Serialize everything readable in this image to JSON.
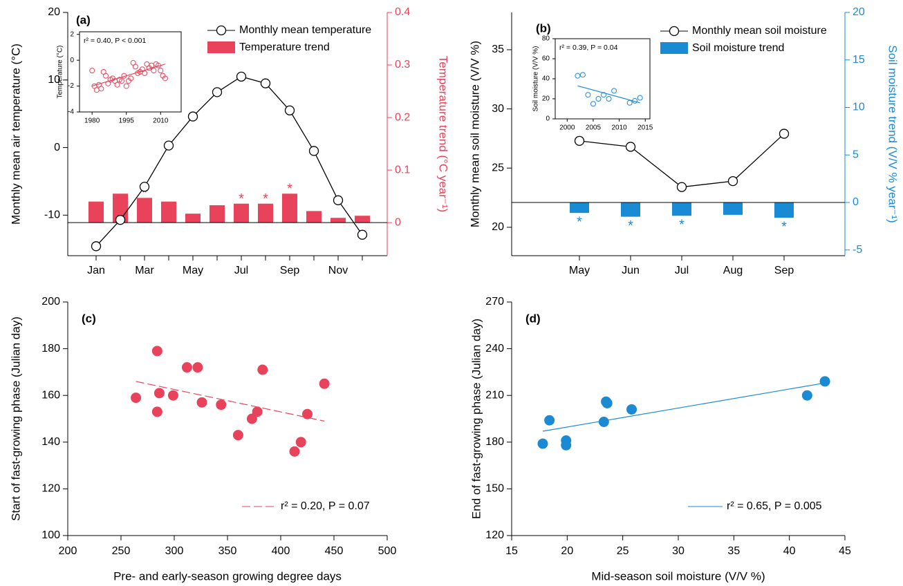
{
  "chart_data": [
    {
      "type": "combo",
      "label": "(a)",
      "categories": [
        "Jan",
        null,
        "Mar",
        null,
        "May",
        null,
        "Jul",
        null,
        "Sep",
        null,
        "Nov",
        null
      ],
      "ylabel": "Monthly mean air temperature (°C)",
      "y2label": "Temperature trend (°C year⁻¹)",
      "ylim": [
        -16,
        20
      ],
      "yticks": [
        -10,
        0,
        10,
        20
      ],
      "y2lim": [
        -0.063,
        0.4
      ],
      "y2ticks": [
        0,
        0.1,
        0.2,
        0.3,
        0.4
      ],
      "significance_marker": "*",
      "significance_position": "above",
      "series": [
        {
          "name": "Monthly mean temperature",
          "type": "line",
          "color": "#000000",
          "values": [
            -14.6,
            -10.7,
            -5.8,
            0.3,
            4.6,
            8.2,
            10.5,
            9.5,
            5.5,
            -0.5,
            -7.8,
            -12.9
          ]
        },
        {
          "name": "Temperature trend",
          "type": "bar",
          "axis": "y2",
          "color": "#e8435a",
          "values": [
            0.04,
            0.055,
            0.047,
            0.04,
            0.017,
            0.033,
            0.036,
            0.036,
            0.055,
            0.022,
            0.009,
            0.013
          ],
          "significant": [
            false,
            false,
            true,
            false,
            false,
            false,
            true,
            true,
            true,
            false,
            false,
            false
          ]
        }
      ]
    },
    {
      "type": "scatter",
      "inset": true,
      "hollow": true,
      "color": "#e8435a",
      "ylabel": "Temperature (°C)",
      "xlim": [
        1974.5,
        2019
      ],
      "xticks": [
        1980,
        1995,
        2010
      ],
      "ylim": [
        -4,
        2.2
      ],
      "yticks": [
        -4,
        -2,
        0,
        2
      ],
      "x": [
        1980,
        1981,
        1982,
        1983,
        1984,
        1985,
        1986,
        1987,
        1988,
        1989,
        1990,
        1991,
        1992,
        1993,
        1994,
        1995,
        1996,
        1997,
        1998,
        1999,
        2000,
        2001,
        2002,
        2003,
        2004,
        2005,
        2006,
        2007,
        2008,
        2009,
        2010,
        2011,
        2012
      ],
      "values": [
        -0.8,
        -2.0,
        -2.3,
        -1.9,
        -2.2,
        -0.9,
        -1.2,
        -1.8,
        -1.5,
        -1.4,
        -1.6,
        -1.9,
        -1.5,
        -1.6,
        -1.2,
        -2.0,
        -1.6,
        -1.4,
        -0.2,
        -0.5,
        -1.0,
        -0.9,
        -0.7,
        -1.0,
        -0.3,
        -0.6,
        -0.4,
        -0.8,
        -0.3,
        -0.4,
        -0.8,
        -1.2,
        -1.4
      ],
      "fit": {
        "x": [
          1980,
          2012
        ],
        "y": [
          -2.0,
          -0.3
        ],
        "dashed": false,
        "label": "r² = 0.40, P < 0.001"
      }
    },
    {
      "type": "combo",
      "label": "(b)",
      "categories": [
        "May",
        "Jun",
        "Jul",
        "Aug",
        "Sep"
      ],
      "ylabel": "Monthly mean soil moisture (V/V %)",
      "y2label": "Soil moisture trend (V/V %  year⁻¹)",
      "ylim": [
        17.6,
        38.15
      ],
      "yticks": [
        20,
        25,
        30,
        35
      ],
      "y2lim": [
        -5.6,
        20
      ],
      "y2ticks": [
        -5,
        0,
        5,
        10,
        15,
        20
      ],
      "significance_marker": "*",
      "significance_position": "below",
      "series": [
        {
          "name": "Monthly mean soil moisture",
          "type": "line",
          "color": "#000000",
          "values": [
            27.3,
            26.8,
            23.4,
            23.9,
            27.9
          ]
        },
        {
          "name": "Soil moisture trend",
          "type": "bar",
          "axis": "y2",
          "color": "#1a8ad4",
          "values": [
            -1.1,
            -1.5,
            -1.4,
            -1.3,
            -1.6
          ],
          "significant": [
            true,
            true,
            true,
            false,
            true
          ]
        }
      ]
    },
    {
      "type": "scatter",
      "inset": true,
      "hollow": true,
      "color": "#1a8ad4",
      "ylabel": "Soil moisture (V/V %)",
      "xlim": [
        1997.7,
        2015.9
      ],
      "xticks": [
        2000,
        2005,
        2010,
        2015
      ],
      "ylim": [
        0,
        80
      ],
      "yticks": [
        0,
        20,
        40,
        60,
        80
      ],
      "x": [
        2002,
        2003,
        2004,
        2005,
        2006,
        2007,
        2008,
        2009,
        2012,
        2013,
        2014
      ],
      "values": [
        43,
        44,
        24,
        15,
        20,
        24,
        20,
        28,
        16,
        18,
        21
      ],
      "fit": {
        "x": [
          2002,
          2014
        ],
        "y": [
          33,
          16
        ],
        "dashed": false,
        "label": "r² = 0.39, P = 0.04"
      }
    },
    {
      "type": "scatter",
      "label": "(c)",
      "hollow": false,
      "color": "#e8435a",
      "xlabel": "Pre- and early-season growing degree days",
      "ylabel": "Start of fast-growing phase (Julian day)",
      "xlim": [
        200,
        500
      ],
      "xticks": [
        200,
        250,
        300,
        350,
        400,
        450,
        500
      ],
      "ylim": [
        100,
        200
      ],
      "yticks": [
        100,
        120,
        140,
        160,
        180,
        200
      ],
      "x": [
        264,
        284,
        284,
        286,
        299,
        312,
        322,
        326,
        344,
        360,
        373,
        378,
        383,
        413,
        419,
        425,
        441
      ],
      "values": [
        159,
        179,
        153,
        161,
        160,
        172,
        172,
        157,
        156,
        143,
        150,
        153,
        171,
        136,
        140,
        152,
        165
      ],
      "fit": {
        "x": [
          264,
          441
        ],
        "y": [
          166,
          149
        ],
        "dashed": true,
        "label": "r² = 0.20, P = 0.07"
      }
    },
    {
      "type": "scatter",
      "label": "(d)",
      "hollow": false,
      "color": "#1a8ad4",
      "xlabel": "Mid-season soil moisture (V/V %)",
      "ylabel": "End of fast-growing phase (Julian day)",
      "xlim": [
        15,
        45
      ],
      "xticks": [
        15,
        20,
        25,
        30,
        35,
        40,
        45
      ],
      "ylim": [
        120,
        270
      ],
      "yticks": [
        120,
        150,
        180,
        210,
        240,
        270
      ],
      "x": [
        17.8,
        18.4,
        19.9,
        19.9,
        23.3,
        23.5,
        23.6,
        25.8,
        41.6,
        43.2
      ],
      "values": [
        179,
        194,
        181,
        178,
        193,
        206,
        205,
        201,
        210,
        219
      ],
      "fit": {
        "x": [
          17.8,
          43.2
        ],
        "y": [
          187,
          218
        ],
        "dashed": false,
        "label": "r² = 0.65, P = 0.005"
      }
    }
  ]
}
